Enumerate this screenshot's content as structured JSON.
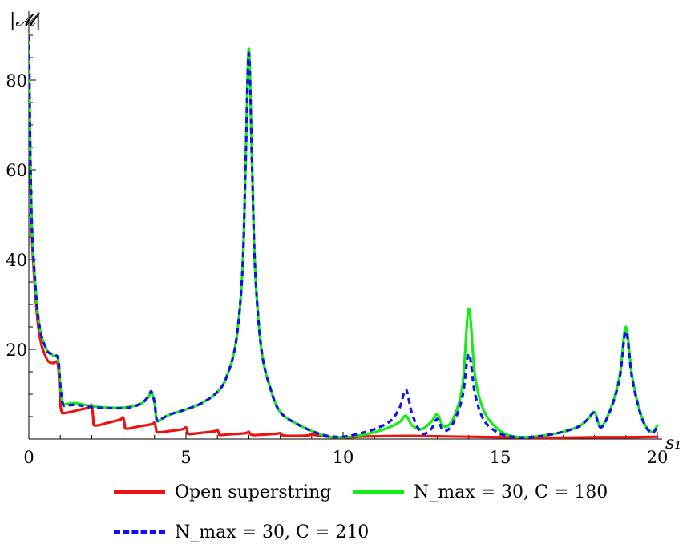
{
  "chart_data": {
    "type": "line",
    "ylabel": "|𝓜|",
    "xlabel": "s₁",
    "xlim": [
      0,
      20
    ],
    "ylim": [
      0,
      90
    ],
    "xticks": [
      0,
      5,
      10,
      15,
      20
    ],
    "yticks": [
      20,
      40,
      60,
      80
    ],
    "xtick_labels": [
      "0",
      "5",
      "10",
      "15",
      "20"
    ],
    "ytick_labels": [
      "20",
      "40",
      "60",
      "80"
    ],
    "grid": false,
    "legend_position": "bottom",
    "series": [
      {
        "name": "Open superstring",
        "color": "#ee1111",
        "dash": "solid",
        "x": [
          0.0,
          0.05,
          0.1,
          0.2,
          0.3,
          0.4,
          0.5,
          0.6,
          0.7,
          0.8,
          0.9,
          0.95,
          1.0,
          1.05,
          1.1,
          1.3,
          1.6,
          1.9,
          2.0,
          2.05,
          2.1,
          2.5,
          2.9,
          3.0,
          3.05,
          3.1,
          3.5,
          3.9,
          4.0,
          4.05,
          4.1,
          4.5,
          4.9,
          5.0,
          5.05,
          5.1,
          5.5,
          5.9,
          6.0,
          6.05,
          6.1,
          6.5,
          6.9,
          7.0,
          7.1,
          7.5,
          7.9,
          8.0,
          8.1,
          8.5,
          8.9,
          9.0,
          9.5,
          10.0,
          10.5,
          11.0,
          12.0,
          13.0,
          14.0,
          15.0,
          16.0,
          17.0,
          18.0,
          19.0,
          20.0
        ],
        "values": [
          90,
          60,
          45,
          33,
          25,
          21,
          19,
          17.5,
          17,
          17,
          17.2,
          15,
          8,
          6,
          5.8,
          6.0,
          6.5,
          7.0,
          7.5,
          4.5,
          3,
          3.6,
          4.3,
          4.8,
          3.2,
          2.3,
          2.8,
          3.3,
          3.6,
          2.2,
          1.5,
          1.8,
          2.2,
          2.6,
          1.5,
          1.1,
          1.4,
          1.7,
          2.0,
          1.2,
          0.9,
          1.1,
          1.3,
          1.6,
          0.9,
          1.0,
          1.2,
          1.3,
          0.8,
          0.7,
          0.8,
          1.0,
          0.5,
          0.3,
          0.5,
          0.6,
          0.7,
          0.6,
          0.5,
          0.4,
          0.3,
          0.3,
          0.4,
          0.4,
          0.5
        ]
      },
      {
        "name": "N_max = 30, C = 180",
        "color": "#11ee11",
        "dash": "solid",
        "x": [
          0.0,
          0.05,
          0.1,
          0.2,
          0.3,
          0.4,
          0.5,
          0.6,
          0.7,
          0.8,
          0.9,
          0.95,
          1.0,
          1.05,
          1.1,
          1.2,
          1.5,
          2.0,
          2.5,
          3.0,
          3.3,
          3.6,
          3.8,
          3.9,
          4.0,
          4.05,
          4.1,
          4.2,
          4.5,
          5.0,
          5.5,
          6.0,
          6.3,
          6.6,
          6.8,
          6.9,
          7.0,
          7.1,
          7.2,
          7.4,
          7.7,
          8.0,
          8.5,
          9.0,
          9.5,
          10.0,
          10.5,
          11.0,
          11.5,
          11.8,
          12.0,
          12.2,
          12.5,
          12.8,
          13.0,
          13.2,
          13.5,
          13.8,
          14.0,
          14.2,
          14.5,
          15.0,
          15.5,
          16.0,
          16.5,
          17.0,
          17.5,
          17.8,
          18.0,
          18.2,
          18.5,
          18.8,
          19.0,
          19.2,
          19.5,
          19.8,
          20.0
        ],
        "values": [
          90,
          62,
          47,
          35,
          27,
          23,
          21,
          19.5,
          19,
          18.5,
          18.5,
          17,
          12,
          9,
          7.8,
          7.8,
          8.0,
          7.3,
          7.0,
          7.0,
          7.3,
          8.0,
          9.3,
          10.5,
          8.0,
          4.8,
          4.0,
          4.4,
          5.5,
          6.6,
          8.0,
          10.5,
          14,
          22,
          38,
          62,
          87,
          62,
          38,
          20,
          11,
          6.0,
          3.5,
          1.8,
          0.6,
          0.4,
          0.8,
          1.5,
          2.7,
          3.8,
          5.2,
          3.0,
          2.2,
          3.8,
          5.5,
          2.8,
          4.5,
          12,
          29,
          14,
          6.0,
          1.8,
          0.5,
          0.5,
          0.9,
          1.6,
          2.8,
          4.5,
          6.0,
          2.8,
          6.5,
          14,
          25,
          14,
          5.0,
          1.6,
          3.0
        ]
      },
      {
        "name": "N_max = 30, C = 210",
        "color": "#1111ee",
        "dash": "dashed",
        "x": [
          0.0,
          0.05,
          0.1,
          0.2,
          0.3,
          0.4,
          0.5,
          0.6,
          0.7,
          0.8,
          0.9,
          0.95,
          1.0,
          1.05,
          1.1,
          1.2,
          1.5,
          2.0,
          2.5,
          3.0,
          3.3,
          3.6,
          3.8,
          3.9,
          4.0,
          4.05,
          4.1,
          4.2,
          4.5,
          5.0,
          5.5,
          6.0,
          6.3,
          6.6,
          6.8,
          6.9,
          7.0,
          7.1,
          7.2,
          7.4,
          7.7,
          8.0,
          8.5,
          9.0,
          9.5,
          10.0,
          10.5,
          11.0,
          11.5,
          11.8,
          12.0,
          12.2,
          12.5,
          12.8,
          13.0,
          13.2,
          13.5,
          13.8,
          14.0,
          14.2,
          14.5,
          15.0,
          15.5,
          16.0,
          16.5,
          17.0,
          17.5,
          17.8,
          18.0,
          18.2,
          18.5,
          18.8,
          19.0,
          19.2,
          19.5,
          19.8,
          20.0
        ],
        "values": [
          90,
          62,
          47,
          35,
          27,
          23,
          21,
          19.5,
          19,
          18.5,
          18.5,
          17,
          12,
          9,
          7.5,
          7.5,
          7.6,
          7.1,
          6.9,
          6.9,
          7.2,
          8.0,
          9.5,
          10.6,
          8.2,
          5.0,
          4.0,
          4.4,
          5.5,
          6.6,
          8.0,
          10.5,
          14,
          22,
          38,
          62,
          86,
          62,
          38,
          20,
          11,
          6.0,
          3.5,
          1.8,
          0.7,
          0.5,
          1.2,
          2.2,
          4.0,
          7.0,
          11,
          5.5,
          1.3,
          2.2,
          4.5,
          1.8,
          3.5,
          9.5,
          19,
          10,
          4.0,
          1.2,
          0.4,
          0.4,
          0.9,
          1.6,
          2.8,
          4.5,
          5.8,
          2.6,
          6.3,
          13.5,
          24,
          13.5,
          4.8,
          1.4,
          2.6
        ]
      }
    ]
  }
}
